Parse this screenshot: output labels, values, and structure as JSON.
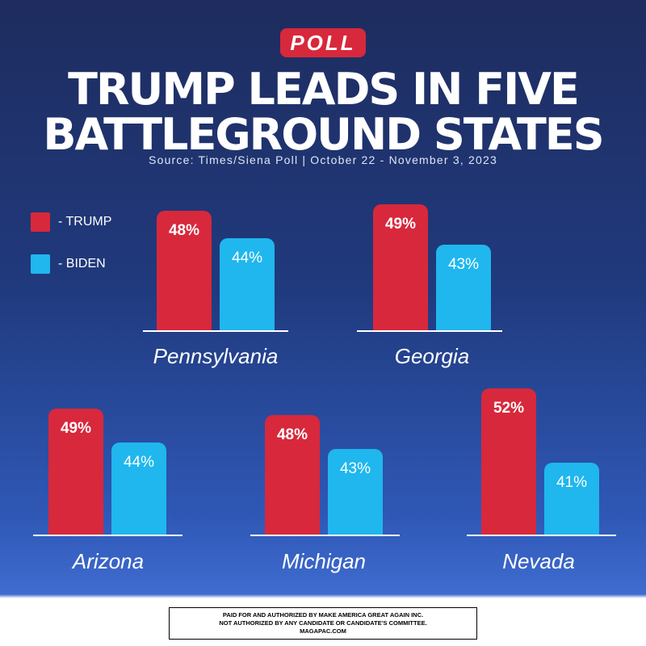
{
  "badge": "POLL",
  "headline": {
    "line1": "TRUMP LEADS IN FIVE",
    "line2": "BATTLEGROUND STATES"
  },
  "source": "Source: Times/Siena Poll | October 22 - November 3, 2023",
  "legend": [
    {
      "label": "- TRUMP",
      "color": "#d8283c"
    },
    {
      "label": "- BIDEN",
      "color": "#1fb7ee"
    }
  ],
  "disclaimer": [
    "PAID FOR AND AUTHORIZED BY MAKE AMERICA GREAT AGAIN INC.",
    "NOT AUTHORIZED BY ANY CANDIDATE OR CANDIDATE'S COMMITTEE.",
    "MAGAPAC.COM"
  ],
  "chart_data": {
    "type": "bar",
    "title": "TRUMP LEADS IN FIVE BATTLEGROUND STATES",
    "unit": "%",
    "categories": [
      "Pennsylvania",
      "Georgia",
      "Arizona",
      "Michigan",
      "Nevada"
    ],
    "series": [
      {
        "name": "TRUMP",
        "color": "#d8283c",
        "values": [
          48,
          49,
          49,
          48,
          52
        ],
        "labels": [
          "48%",
          "49%",
          "49%",
          "48%",
          "52%"
        ]
      },
      {
        "name": "BIDEN",
        "color": "#1fb7ee",
        "values": [
          44,
          43,
          44,
          43,
          41
        ],
        "labels": [
          "44%",
          "43%",
          "44%",
          "43%",
          "41%"
        ]
      }
    ]
  }
}
